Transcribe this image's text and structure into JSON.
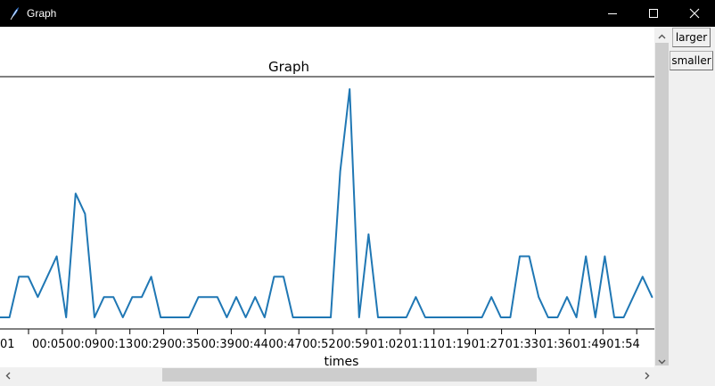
{
  "window": {
    "title": "Graph",
    "icons": {
      "app": "feather-icon",
      "minimize": "minimize-icon",
      "maximize": "maximize-icon",
      "close": "close-icon"
    }
  },
  "controls": {
    "larger_label": "larger",
    "smaller_label": "smaller"
  },
  "colors": {
    "line": "#1f77b4",
    "titlebar": "#000000",
    "scrollbar_thumb": "#cdcdcd"
  },
  "chart_data": {
    "type": "line",
    "title": "Graph",
    "xlabel": "times",
    "ylabel": "",
    "grid": false,
    "xtick_labels": [
      "01",
      "00:05",
      "00:09",
      "00:13",
      "00:29",
      "00:35",
      "00:39",
      "00:44",
      "00:47",
      "00:52",
      "00:59",
      "01:02",
      "01:11",
      "01:19",
      "01:27",
      "01:33",
      "01:36",
      "01:49",
      "01:54"
    ],
    "ylim": [
      0,
      260
    ],
    "series": [
      {
        "values": [
          0,
          0,
          46,
          46,
          23,
          46,
          69,
          0,
          140,
          117,
          0,
          23,
          23,
          0,
          23,
          23,
          46,
          0,
          0,
          0,
          0,
          23,
          23,
          23,
          0,
          23,
          0,
          23,
          0,
          46,
          46,
          0,
          0,
          0,
          0,
          0,
          165,
          258,
          0,
          94,
          0,
          0,
          0,
          0,
          23,
          0,
          0,
          0,
          0,
          0,
          0,
          0,
          23,
          0,
          0,
          69,
          69,
          23,
          0,
          0,
          23,
          0,
          69,
          0,
          69,
          0,
          0,
          23,
          46,
          23
        ]
      }
    ]
  }
}
